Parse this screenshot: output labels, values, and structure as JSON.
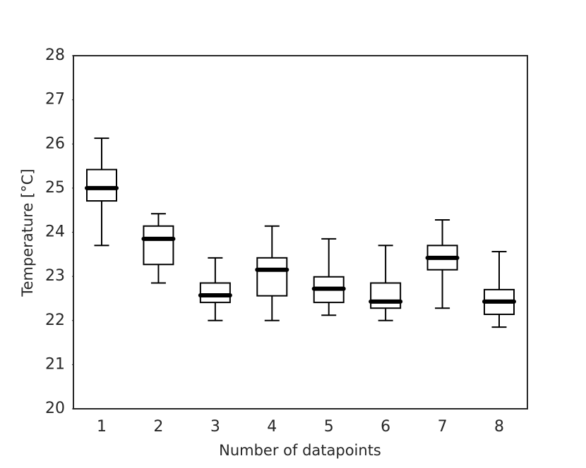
{
  "chart_data": {
    "type": "box",
    "xlabel": "Number of datapoints",
    "ylabel": "Temperature [°C]",
    "categories": [
      "1",
      "2",
      "3",
      "4",
      "5",
      "6",
      "7",
      "8"
    ],
    "boxes": [
      {
        "whislo": 23.7,
        "q1": 24.71,
        "med": 25.0,
        "q3": 25.42,
        "whishi": 26.13
      },
      {
        "whislo": 22.85,
        "q1": 23.27,
        "med": 23.85,
        "q3": 24.14,
        "whishi": 24.42
      },
      {
        "whislo": 22.0,
        "q1": 22.41,
        "med": 22.57,
        "q3": 22.85,
        "whishi": 23.42
      },
      {
        "whislo": 22.0,
        "q1": 22.56,
        "med": 23.15,
        "q3": 23.42,
        "whishi": 24.14
      },
      {
        "whislo": 22.12,
        "q1": 22.41,
        "med": 22.72,
        "q3": 22.99,
        "whishi": 23.85
      },
      {
        "whislo": 22.0,
        "q1": 22.28,
        "med": 22.43,
        "q3": 22.85,
        "whishi": 23.7
      },
      {
        "whislo": 22.28,
        "q1": 23.15,
        "med": 23.42,
        "q3": 23.7,
        "whishi": 24.28
      },
      {
        "whislo": 21.85,
        "q1": 22.14,
        "med": 22.43,
        "q3": 22.7,
        "whishi": 23.56
      }
    ],
    "color": "#000000",
    "ylim": [
      20,
      28
    ],
    "yticks": [
      20,
      21,
      22,
      23,
      24,
      25,
      26,
      27,
      28
    ],
    "grid": false
  }
}
